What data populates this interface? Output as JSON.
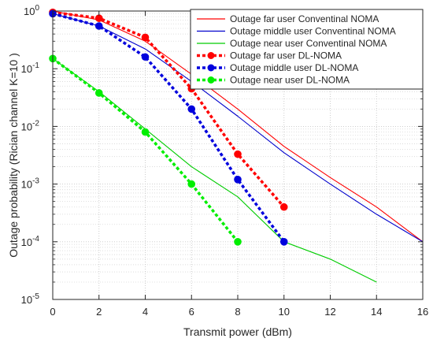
{
  "chart_data": {
    "type": "line",
    "xlabel": "Transmit power (dBm)",
    "ylabel": "Outage probability (Rician channel K=10 )",
    "xlim": [
      0,
      16
    ],
    "ylim": [
      1e-05,
      1
    ],
    "yscale": "log",
    "grid": true,
    "legend_position": "top-right",
    "x_ticks": [
      "0",
      "2",
      "4",
      "6",
      "8",
      "10",
      "12",
      "14",
      "16"
    ],
    "y_ticks": [
      {
        "base": "10",
        "exp": "0"
      },
      {
        "base": "10",
        "exp": "-1"
      },
      {
        "base": "10",
        "exp": "-2"
      },
      {
        "base": "10",
        "exp": "-3"
      },
      {
        "base": "10",
        "exp": "-4"
      },
      {
        "base": "10",
        "exp": "-5"
      }
    ],
    "series": [
      {
        "name": "Outage far user Conventinal NOMA",
        "color": "#ff0000",
        "style": "solid",
        "marker": false,
        "x": [
          0,
          2,
          4,
          6,
          8,
          10,
          12,
          14,
          16
        ],
        "y": [
          1.0,
          0.7,
          0.3,
          0.08,
          0.02,
          0.0045,
          0.0013,
          0.0004,
          0.0001
        ]
      },
      {
        "name": "Outage middle user Conventinal NOMA",
        "color": "#0000cc",
        "style": "solid",
        "marker": false,
        "x": [
          0,
          2,
          4,
          6,
          8,
          10,
          12,
          14,
          16
        ],
        "y": [
          0.9,
          0.55,
          0.22,
          0.06,
          0.015,
          0.0035,
          0.001,
          0.0003,
          0.0001
        ]
      },
      {
        "name": "Outage near user Conventinal NOMA",
        "color": "#00cc00",
        "style": "solid",
        "marker": false,
        "x": [
          0,
          2,
          4,
          6,
          8,
          10,
          12,
          14
        ],
        "y": [
          0.15,
          0.04,
          0.009,
          0.002,
          0.0006,
          0.0001,
          5e-05,
          2e-05
        ]
      },
      {
        "name": "Outage far user DL-NOMA",
        "color": "#ff0000",
        "style": "dotted",
        "marker": true,
        "x": [
          0,
          2,
          4,
          6,
          8,
          10
        ],
        "y": [
          0.95,
          0.75,
          0.35,
          0.045,
          0.0033,
          0.0004
        ]
      },
      {
        "name": "Outage middle user DL-NOMA",
        "color": "#0000dd",
        "style": "dotted",
        "marker": true,
        "x": [
          0,
          2,
          4,
          6,
          8,
          10
        ],
        "y": [
          0.9,
          0.55,
          0.16,
          0.02,
          0.0012,
          0.0001
        ]
      },
      {
        "name": "Outage near user DL-NOMA",
        "color": "#00ee00",
        "style": "dotted",
        "marker": true,
        "x": [
          0,
          2,
          4,
          6,
          8
        ],
        "y": [
          0.15,
          0.038,
          0.008,
          0.001,
          0.0001
        ]
      }
    ]
  }
}
